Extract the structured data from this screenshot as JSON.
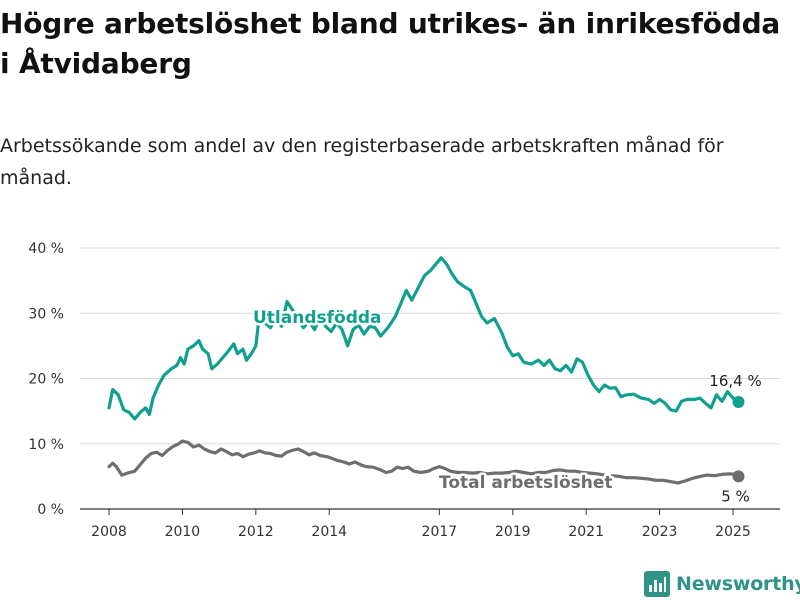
{
  "title": "Högre arbetslöshet bland utrikes- än inrikesfödda i Åtvidaberg",
  "subtitle": "Arbetssökande som andel av den registerbaserade arbetskraften månad för månad.",
  "brand": "Newsworthy",
  "colors": {
    "utlandsfodda": "#12a08e",
    "total": "#6e6e6e",
    "grid": "#dcdcdc"
  },
  "chart_data": {
    "type": "line",
    "x_ticks": [
      "2008",
      "2010",
      "2012",
      "2014",
      "2017",
      "2019",
      "2021",
      "2023",
      "2025"
    ],
    "y_ticks": [
      "0 %",
      "10 %",
      "20 %",
      "30 %",
      "40 %"
    ],
    "ylim": [
      0,
      40
    ],
    "grid": true,
    "series": [
      {
        "name": "Utlandsfödda",
        "end_label": "16,4 %",
        "points": [
          [
            2008.0,
            15.5
          ],
          [
            2008.1,
            18.3
          ],
          [
            2008.25,
            17.5
          ],
          [
            2008.4,
            15.2
          ],
          [
            2008.55,
            14.8
          ],
          [
            2008.7,
            13.8
          ],
          [
            2008.85,
            14.8
          ],
          [
            2009.0,
            15.5
          ],
          [
            2009.1,
            14.5
          ],
          [
            2009.2,
            17.0
          ],
          [
            2009.35,
            19.0
          ],
          [
            2009.5,
            20.5
          ],
          [
            2009.7,
            21.5
          ],
          [
            2009.85,
            22.0
          ],
          [
            2009.95,
            23.2
          ],
          [
            2010.05,
            22.2
          ],
          [
            2010.15,
            24.5
          ],
          [
            2010.3,
            25.0
          ],
          [
            2010.45,
            25.8
          ],
          [
            2010.55,
            24.5
          ],
          [
            2010.7,
            23.8
          ],
          [
            2010.8,
            21.5
          ],
          [
            2010.95,
            22.2
          ],
          [
            2011.1,
            23.2
          ],
          [
            2011.25,
            24.2
          ],
          [
            2011.4,
            25.3
          ],
          [
            2011.5,
            23.8
          ],
          [
            2011.65,
            24.5
          ],
          [
            2011.75,
            22.8
          ],
          [
            2011.9,
            24.0
          ],
          [
            2012.0,
            25.0
          ],
          [
            2012.1,
            29.8
          ],
          [
            2012.25,
            28.5
          ],
          [
            2012.4,
            27.8
          ],
          [
            2012.55,
            29.2
          ],
          [
            2012.7,
            28.0
          ],
          [
            2012.85,
            31.8
          ],
          [
            2013.0,
            30.5
          ],
          [
            2013.15,
            29.0
          ],
          [
            2013.3,
            27.8
          ],
          [
            2013.45,
            28.8
          ],
          [
            2013.6,
            27.5
          ],
          [
            2013.75,
            29.5
          ],
          [
            2013.9,
            28.0
          ],
          [
            2014.05,
            27.2
          ],
          [
            2014.2,
            28.5
          ],
          [
            2014.35,
            27.5
          ],
          [
            2014.5,
            25.0
          ],
          [
            2014.65,
            27.5
          ],
          [
            2014.8,
            28.2
          ],
          [
            2014.95,
            26.8
          ],
          [
            2015.1,
            28.0
          ],
          [
            2015.25,
            27.8
          ],
          [
            2015.4,
            26.5
          ],
          [
            2015.6,
            27.8
          ],
          [
            2015.8,
            29.5
          ],
          [
            2015.95,
            31.5
          ],
          [
            2016.1,
            33.5
          ],
          [
            2016.25,
            32.0
          ],
          [
            2016.45,
            34.2
          ],
          [
            2016.6,
            35.8
          ],
          [
            2016.75,
            36.5
          ],
          [
            2016.9,
            37.5
          ],
          [
            2017.05,
            38.5
          ],
          [
            2017.2,
            37.5
          ],
          [
            2017.35,
            36.0
          ],
          [
            2017.5,
            34.8
          ],
          [
            2017.7,
            34.0
          ],
          [
            2017.85,
            33.5
          ],
          [
            2018.0,
            31.5
          ],
          [
            2018.15,
            29.5
          ],
          [
            2018.3,
            28.5
          ],
          [
            2018.5,
            29.2
          ],
          [
            2018.7,
            27.0
          ],
          [
            2018.85,
            24.8
          ],
          [
            2019.0,
            23.5
          ],
          [
            2019.15,
            23.8
          ],
          [
            2019.3,
            22.5
          ],
          [
            2019.5,
            22.2
          ],
          [
            2019.7,
            22.8
          ],
          [
            2019.85,
            22.0
          ],
          [
            2020.0,
            22.8
          ],
          [
            2020.15,
            21.5
          ],
          [
            2020.3,
            21.2
          ],
          [
            2020.45,
            22.0
          ],
          [
            2020.6,
            21.0
          ],
          [
            2020.75,
            23.0
          ],
          [
            2020.9,
            22.5
          ],
          [
            2021.05,
            20.5
          ],
          [
            2021.2,
            19.0
          ],
          [
            2021.35,
            18.0
          ],
          [
            2021.5,
            19.0
          ],
          [
            2021.65,
            18.5
          ],
          [
            2021.8,
            18.6
          ],
          [
            2021.95,
            17.2
          ],
          [
            2022.1,
            17.5
          ],
          [
            2022.3,
            17.6
          ],
          [
            2022.5,
            17.0
          ],
          [
            2022.7,
            16.8
          ],
          [
            2022.85,
            16.2
          ],
          [
            2023.0,
            16.8
          ],
          [
            2023.15,
            16.2
          ],
          [
            2023.3,
            15.2
          ],
          [
            2023.45,
            15.0
          ],
          [
            2023.6,
            16.5
          ],
          [
            2023.75,
            16.8
          ],
          [
            2023.95,
            16.8
          ],
          [
            2024.1,
            17.0
          ],
          [
            2024.25,
            16.2
          ],
          [
            2024.4,
            15.5
          ],
          [
            2024.55,
            17.5
          ],
          [
            2024.7,
            16.5
          ],
          [
            2024.85,
            18.0
          ],
          [
            2025.0,
            17.0
          ],
          [
            2025.15,
            16.4
          ]
        ]
      },
      {
        "name": "Total arbetslöshet",
        "end_label": "5 %",
        "points": [
          [
            2008.0,
            6.5
          ],
          [
            2008.1,
            7.0
          ],
          [
            2008.2,
            6.5
          ],
          [
            2008.35,
            5.2
          ],
          [
            2008.5,
            5.5
          ],
          [
            2008.7,
            5.8
          ],
          [
            2008.85,
            6.8
          ],
          [
            2009.0,
            7.8
          ],
          [
            2009.15,
            8.5
          ],
          [
            2009.3,
            8.7
          ],
          [
            2009.45,
            8.2
          ],
          [
            2009.6,
            9.0
          ],
          [
            2009.75,
            9.6
          ],
          [
            2009.9,
            10.0
          ],
          [
            2010.0,
            10.4
          ],
          [
            2010.15,
            10.2
          ],
          [
            2010.3,
            9.5
          ],
          [
            2010.45,
            9.8
          ],
          [
            2010.6,
            9.2
          ],
          [
            2010.75,
            8.8
          ],
          [
            2010.9,
            8.6
          ],
          [
            2011.05,
            9.2
          ],
          [
            2011.2,
            8.8
          ],
          [
            2011.35,
            8.3
          ],
          [
            2011.5,
            8.5
          ],
          [
            2011.65,
            8.0
          ],
          [
            2011.8,
            8.4
          ],
          [
            2011.95,
            8.6
          ],
          [
            2012.1,
            8.9
          ],
          [
            2012.25,
            8.6
          ],
          [
            2012.4,
            8.5
          ],
          [
            2012.55,
            8.2
          ],
          [
            2012.7,
            8.1
          ],
          [
            2012.85,
            8.7
          ],
          [
            2013.0,
            9.0
          ],
          [
            2013.15,
            9.2
          ],
          [
            2013.3,
            8.8
          ],
          [
            2013.45,
            8.3
          ],
          [
            2013.6,
            8.6
          ],
          [
            2013.75,
            8.2
          ],
          [
            2013.95,
            8.0
          ],
          [
            2014.1,
            7.7
          ],
          [
            2014.25,
            7.4
          ],
          [
            2014.4,
            7.2
          ],
          [
            2014.55,
            6.9
          ],
          [
            2014.7,
            7.2
          ],
          [
            2014.85,
            6.8
          ],
          [
            2015.0,
            6.5
          ],
          [
            2015.2,
            6.4
          ],
          [
            2015.4,
            6.0
          ],
          [
            2015.55,
            5.6
          ],
          [
            2015.7,
            5.8
          ],
          [
            2015.85,
            6.4
          ],
          [
            2016.0,
            6.2
          ],
          [
            2016.15,
            6.4
          ],
          [
            2016.3,
            5.8
          ],
          [
            2016.5,
            5.6
          ],
          [
            2016.7,
            5.8
          ],
          [
            2016.85,
            6.2
          ],
          [
            2017.0,
            6.5
          ],
          [
            2017.15,
            6.2
          ],
          [
            2017.3,
            5.8
          ],
          [
            2017.5,
            5.6
          ],
          [
            2017.7,
            5.6
          ],
          [
            2017.9,
            5.5
          ],
          [
            2018.1,
            5.6
          ],
          [
            2018.3,
            5.4
          ],
          [
            2018.5,
            5.5
          ],
          [
            2018.7,
            5.5
          ],
          [
            2018.9,
            5.6
          ],
          [
            2019.1,
            5.8
          ],
          [
            2019.3,
            5.6
          ],
          [
            2019.5,
            5.4
          ],
          [
            2019.7,
            5.6
          ],
          [
            2019.9,
            5.6
          ],
          [
            2020.1,
            5.9
          ],
          [
            2020.3,
            6.0
          ],
          [
            2020.5,
            5.8
          ],
          [
            2020.7,
            5.8
          ],
          [
            2020.9,
            5.6
          ],
          [
            2021.1,
            5.5
          ],
          [
            2021.3,
            5.4
          ],
          [
            2021.5,
            5.2
          ],
          [
            2021.7,
            5.1
          ],
          [
            2021.9,
            5.0
          ],
          [
            2022.1,
            4.8
          ],
          [
            2022.3,
            4.8
          ],
          [
            2022.5,
            4.7
          ],
          [
            2022.7,
            4.6
          ],
          [
            2022.9,
            4.4
          ],
          [
            2023.1,
            4.4
          ],
          [
            2023.3,
            4.2
          ],
          [
            2023.5,
            4.0
          ],
          [
            2023.7,
            4.3
          ],
          [
            2023.9,
            4.7
          ],
          [
            2024.1,
            5.0
          ],
          [
            2024.3,
            5.2
          ],
          [
            2024.5,
            5.1
          ],
          [
            2024.7,
            5.3
          ],
          [
            2024.9,
            5.4
          ],
          [
            2025.05,
            5.3
          ],
          [
            2025.15,
            5.0
          ]
        ]
      }
    ]
  }
}
